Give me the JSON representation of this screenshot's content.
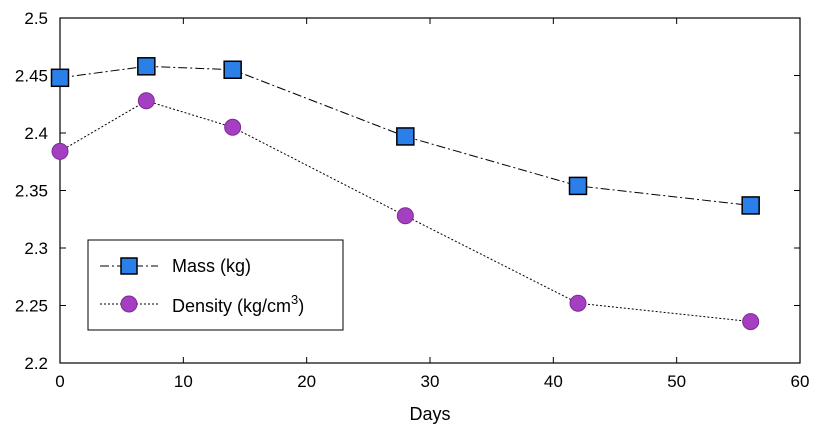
{
  "chart_data": {
    "type": "line",
    "x": [
      0,
      7,
      14,
      28,
      42,
      56
    ],
    "series": [
      {
        "name": "Mass (kg)",
        "values": [
          2.448,
          2.458,
          2.455,
          2.397,
          2.354,
          2.337
        ],
        "marker": "square",
        "marker_color": "#2a7fe8",
        "line_style": "dash-dot"
      },
      {
        "name": "Density (kg/cm3)",
        "values": [
          2.384,
          2.428,
          2.405,
          2.328,
          2.252,
          2.236
        ],
        "marker": "circle",
        "marker_color": "#a53fc2",
        "line_style": "dotted"
      }
    ],
    "xlabel": "Days",
    "ylabel": "",
    "xlim": [
      0,
      60
    ],
    "ylim": [
      2.2,
      2.5
    ],
    "xticks": [
      "0",
      "10",
      "20",
      "30",
      "40",
      "50",
      "60"
    ],
    "yticks": [
      "2.2",
      "2.25",
      "2.3",
      "2.35",
      "2.4",
      "2.45",
      "2.5"
    ],
    "grid": false,
    "legend_position": "bottom-left",
    "legend": {
      "mass_label": "Mass (kg)",
      "density_label_base": "Density (kg/cm",
      "density_label_sup": "3",
      "density_label_end": ")"
    }
  }
}
